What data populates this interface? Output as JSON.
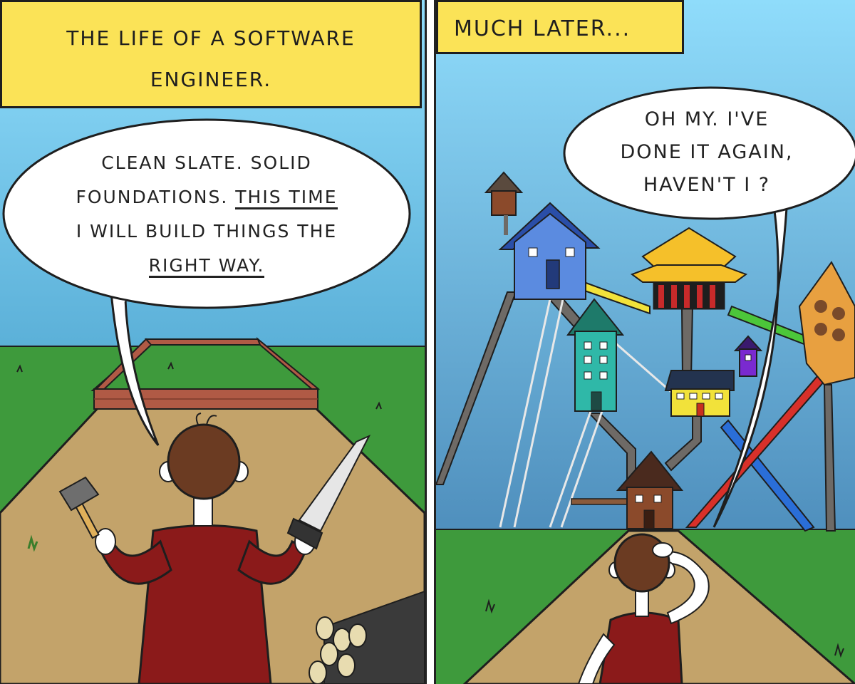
{
  "comic": {
    "panel_left": {
      "caption": "The life of a software engineer.",
      "speech": {
        "line1": "Clean slate. Solid",
        "line2_a": "foundations.",
        "line2_b": "This time",
        "line3": "I will build things the",
        "line4": "right way."
      }
    },
    "panel_right": {
      "caption": "Much later...",
      "speech": {
        "line1": "Oh my. I've",
        "line2": "done it again,",
        "line3": "haven't I ?"
      }
    }
  },
  "colors": {
    "sky": "#7dd3f7",
    "grass": "#3e9a3c",
    "path": "#c3a36a",
    "caption_bg": "#fbe357",
    "shirt": "#8b1a1a",
    "hair": "#6b3b22"
  }
}
